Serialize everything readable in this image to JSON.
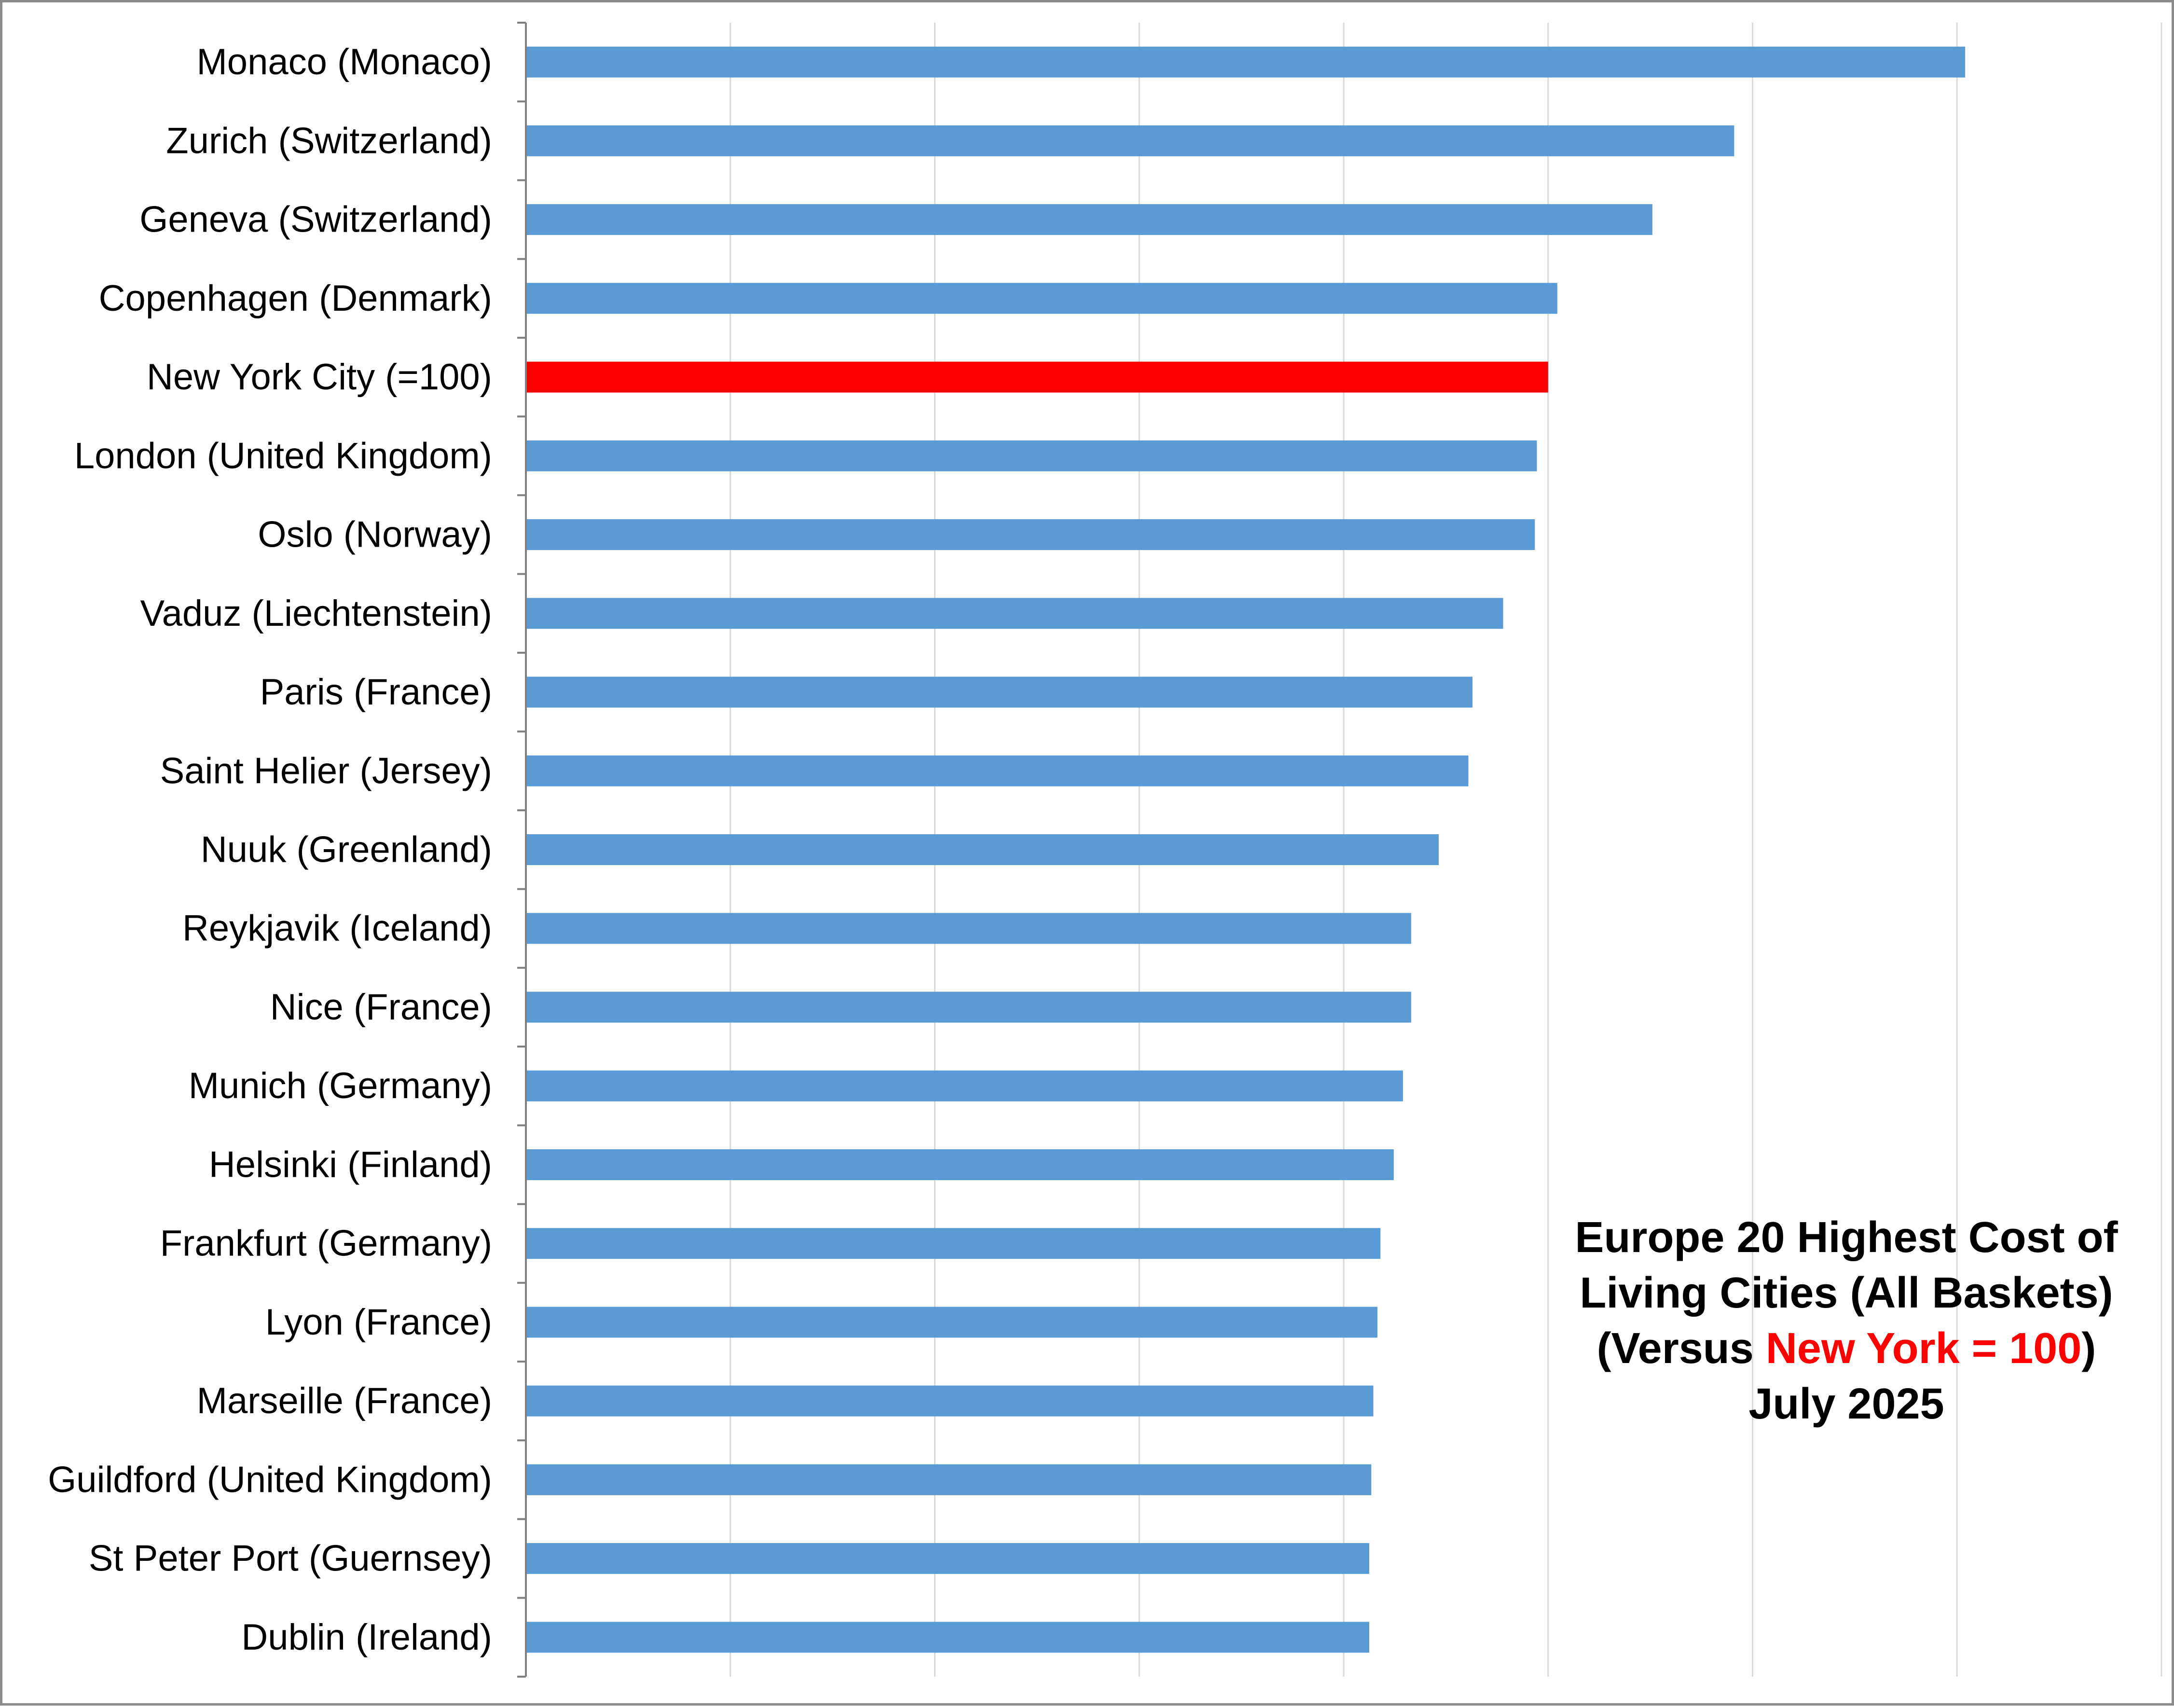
{
  "chart_data": {
    "type": "bar",
    "orientation": "horizontal",
    "title_lines": [
      "Europe 20 Highest Cost of",
      "Living Cities (All Baskets)",
      [
        "(Versus ",
        "New York = 100",
        ")"
      ],
      "July 2025"
    ],
    "categories": [
      "Monaco (Monaco)",
      "Zurich (Switzerland)",
      "Geneva (Switzerland)",
      "Copenhagen (Denmark)",
      "New York City (=100)",
      "London (United Kingdom)",
      "Oslo (Norway)",
      "Vaduz (Liechtenstein)",
      "Paris (France)",
      "Saint Helier (Jersey)",
      "Nuuk (Greenland)",
      "Reykjavik (Iceland)",
      "Nice (France)",
      "Munich (Germany)",
      "Helsinki (Finland)",
      "Frankfurt (Germany)",
      "Lyon (France)",
      "Marseille (France)",
      "Guildford (United Kingdom)",
      "St Peter Port (Guernsey)",
      "Dublin (Ireland)"
    ],
    "values": [
      140.8,
      118.2,
      110.2,
      100.9,
      100,
      98.9,
      98.7,
      95.6,
      92.6,
      92.2,
      89.3,
      86.6,
      86.6,
      85.8,
      84.9,
      83.6,
      83.3,
      82.9,
      82.7,
      82.5,
      82.5
    ],
    "xlim": [
      0,
      160
    ],
    "x_gridlines": [
      20,
      40,
      60,
      80,
      100,
      120,
      140,
      160
    ],
    "x_tick_labels_visible": false,
    "grid": true,
    "legend": "none",
    "colors": {
      "bar": "#5b9bd5",
      "highlight_bar": "#ff0000",
      "highlight_category": "New York City (=100)",
      "gridline": "#d9d9d9",
      "axis": "#808080",
      "title_highlight": "#ff0000"
    }
  }
}
